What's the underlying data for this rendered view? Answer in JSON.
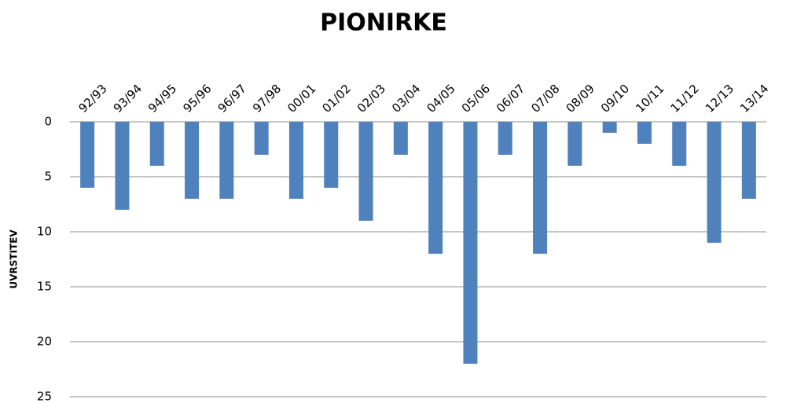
{
  "chart_data": {
    "type": "bar",
    "title": "PIONIRKE",
    "y_label": "UVRSTITEV",
    "categories": [
      "92/93",
      "93/94",
      "94/95",
      "95/96",
      "96/97",
      "97/98",
      "00/01",
      "01/02",
      "02/03",
      "03/04",
      "04/05",
      "05/06",
      "06/07",
      "07/08",
      "08/09",
      "09/10",
      "10/11",
      "11/12",
      "12/13",
      "13/14"
    ],
    "values": [
      6,
      8,
      4,
      7,
      7,
      3,
      7,
      6,
      9,
      3,
      12,
      22,
      3,
      12,
      4,
      1,
      2,
      4,
      11,
      7
    ],
    "color": "#4f81bd",
    "ylim": [
      0,
      25
    ],
    "yticks": [
      0,
      5,
      10,
      15,
      20,
      25
    ],
    "y_inverted": true,
    "grid": true
  }
}
